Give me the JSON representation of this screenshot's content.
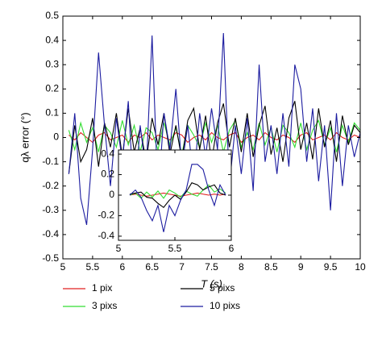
{
  "chart_data": [
    {
      "type": "line",
      "xlabel": "T (s)",
      "ylabel": "qλ error (°)",
      "xlim": [
        5,
        10
      ],
      "ylim": [
        -0.5,
        0.5
      ],
      "xticks": [
        5,
        5.5,
        6,
        6.5,
        7,
        7.5,
        8,
        8.5,
        9,
        9.5,
        10
      ],
      "yticks": [
        -0.5,
        -0.4,
        -0.3,
        -0.2,
        -0.1,
        0,
        0.1,
        0.2,
        0.3,
        0.4,
        0.5
      ],
      "grid": false,
      "legend": "below",
      "x": [
        5.1,
        5.2,
        5.3,
        5.4,
        5.5,
        5.6,
        5.7,
        5.8,
        5.9,
        6.0,
        6.1,
        6.2,
        6.3,
        6.4,
        6.5,
        6.6,
        6.7,
        6.8,
        6.9,
        7.0,
        7.1,
        7.2,
        7.3,
        7.4,
        7.5,
        7.6,
        7.7,
        7.8,
        7.9,
        8.0,
        8.1,
        8.2,
        8.3,
        8.4,
        8.5,
        8.6,
        8.7,
        8.8,
        8.9,
        9.0,
        9.1,
        9.2,
        9.3,
        9.4,
        9.5,
        9.6,
        9.7,
        9.8,
        9.9,
        10.0
      ],
      "series": [
        {
          "name": "1 pix",
          "color": "#e02020",
          "values": [
            0.01,
            -0.01,
            0.02,
            0,
            -0.02,
            0.01,
            0.02,
            -0.01,
            0,
            0.01,
            -0.02,
            0.01,
            0,
            0.02,
            -0.01,
            0.01,
            0,
            -0.01,
            0.02,
            0.01,
            -0.02,
            0,
            0.01,
            -0.01,
            0.02,
            0,
            -0.01,
            0.01,
            0.02,
            -0.02,
            0,
            0.01,
            -0.01,
            0.02,
            0,
            -0.01,
            0.01,
            0,
            -0.02,
            0.01,
            0.02,
            -0.01,
            0,
            0.01,
            -0.01,
            0.02,
            0,
            -0.01,
            0.01,
            0
          ]
        },
        {
          "name": "3 pixs",
          "color": "#33dd33",
          "values": [
            0.03,
            -0.05,
            0.06,
            -0.02,
            0.04,
            -0.06,
            0.05,
            0.02,
            -0.04,
            0.07,
            -0.03,
            0.05,
            -0.06,
            0.04,
            0.02,
            -0.05,
            0.06,
            -0.03,
            0.04,
            -0.07,
            0.05,
            0.01,
            -0.04,
            0.06,
            -0.02,
            0.05,
            -0.06,
            0.03,
            0.07,
            -0.04,
            0.02,
            -0.05,
            0.06,
            -0.03,
            0.04,
            -0.06,
            0.05,
            0.02,
            -0.04,
            0.06,
            -0.05,
            0.03,
            0.07,
            -0.03,
            0.04,
            -0.06,
            0.05,
            -0.02,
            0.06,
            0.03
          ]
        },
        {
          "name": "5 pixs",
          "color": "#000000",
          "values": [
            -0.15,
            0.05,
            -0.1,
            -0.05,
            0.08,
            -0.12,
            0.06,
            -0.04,
            0.1,
            -0.08,
            0.12,
            -0.06,
            0.04,
            -0.1,
            0.08,
            -0.03,
            0.1,
            -0.07,
            0.05,
            -0.09,
            0.07,
            0.12,
            -0.05,
            0.09,
            -0.1,
            0.06,
            0.14,
            -0.04,
            0.08,
            -0.06,
            0.1,
            -0.08,
            0.05,
            0.13,
            -0.07,
            0.04,
            -0.1,
            0.08,
            0.15,
            -0.05,
            0.06,
            -0.09,
            0.12,
            -0.04,
            0.07,
            -0.1,
            0.09,
            -0.03,
            0.05,
            0.02
          ]
        },
        {
          "name": "10 pixs",
          "color": "#1c1ca0",
          "values": [
            -0.15,
            0.1,
            -0.25,
            -0.36,
            -0.05,
            0.35,
            0.05,
            -0.2,
            0.08,
            -0.1,
            0.15,
            -0.28,
            0.05,
            -0.15,
            0.42,
            -0.25,
            0.1,
            -0.05,
            0.2,
            -0.12,
            0.05,
            -0.18,
            0.1,
            -0.08,
            0.12,
            -0.05,
            0.43,
            -0.2,
            0.05,
            -0.15,
            0.08,
            -0.22,
            0.3,
            -0.1,
            0.05,
            -0.15,
            0.1,
            -0.12,
            0.3,
            0.2,
            -0.1,
            0.12,
            -0.18,
            0.05,
            -0.3,
            0.1,
            -0.2,
            0.05,
            -0.08,
            0.02
          ]
        }
      ]
    },
    {
      "type": "line",
      "xlim": [
        5,
        6
      ],
      "ylim": [
        -0.44,
        0.44
      ],
      "xticks": [
        5,
        5.5,
        6
      ],
      "yticks": [
        -0.4,
        -0.2,
        0,
        0.2,
        0.4
      ],
      "grid": false,
      "x": [
        5.1,
        5.15,
        5.2,
        5.25,
        5.3,
        5.35,
        5.4,
        5.45,
        5.5,
        5.55,
        5.6,
        5.65,
        5.7,
        5.75,
        5.8,
        5.85,
        5.9,
        5.95
      ],
      "series": [
        {
          "color": "#e02020",
          "values": [
            0,
            0.01,
            0,
            -0.01,
            0,
            0.01,
            0.02,
            0.01,
            0,
            -0.01,
            0,
            0.01,
            0.02,
            0.01,
            0,
            0.01,
            0,
            0.01
          ]
        },
        {
          "color": "#33dd33",
          "values": [
            0,
            0.02,
            -0.03,
            0.03,
            -0.02,
            0.04,
            -0.03,
            0.05,
            0.02,
            -0.02,
            0.04,
            0.01,
            -0.01,
            0.05,
            0.1,
            0.03,
            0.06,
            0.02
          ]
        },
        {
          "color": "#000000",
          "values": [
            0.01,
            0.02,
            0.03,
            -0.02,
            -0.03,
            -0.08,
            -0.12,
            -0.05,
            0,
            -0.04,
            0.03,
            0.12,
            0.1,
            0.05,
            0.08,
            0.1,
            0.02,
            0
          ]
        },
        {
          "color": "#1c1ca0",
          "values": [
            0,
            0.05,
            -0.02,
            -0.15,
            -0.25,
            -0.1,
            -0.36,
            -0.1,
            -0.2,
            -0.05,
            0.05,
            0.3,
            0.3,
            0.25,
            0.05,
            -0.1,
            0.1,
            0
          ]
        }
      ]
    }
  ]
}
